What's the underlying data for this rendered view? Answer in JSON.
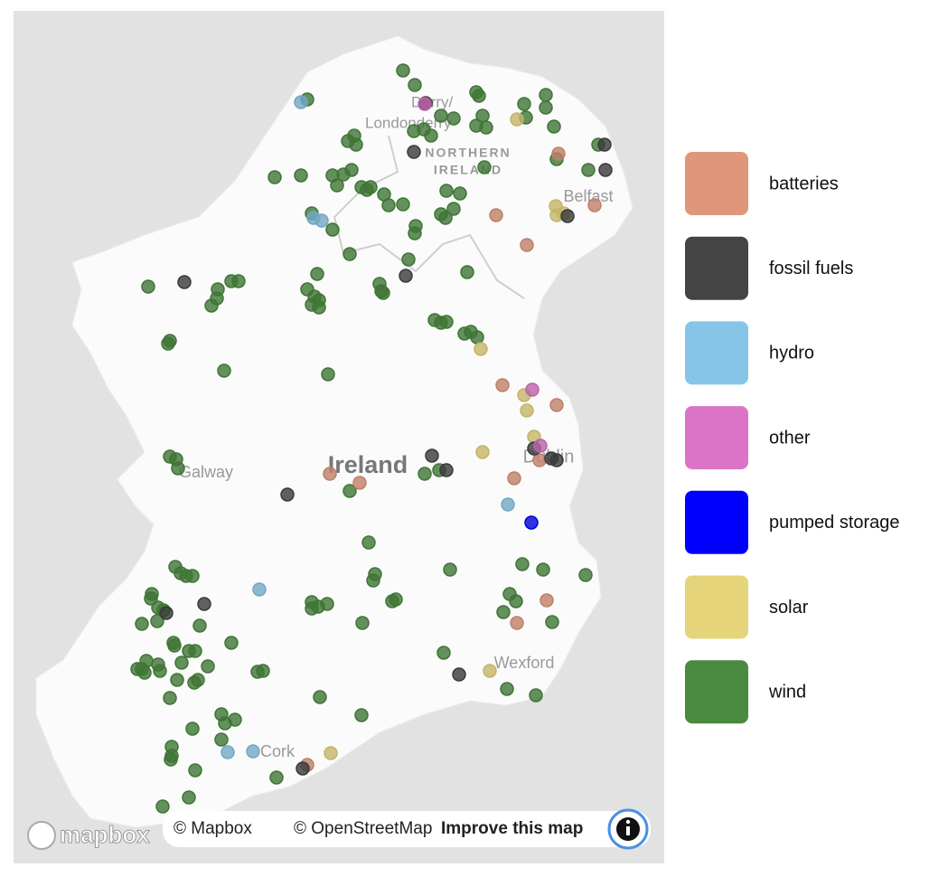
{
  "map": {
    "place_labels": [
      "Derry/",
      "Londonderry",
      "NORTHERN",
      "IRELAND",
      "Belfast",
      "Ireland",
      "Galway",
      "Dublin",
      "Wexford",
      "Cork"
    ],
    "logo": "mapbox",
    "attribution": {
      "mapbox": "© Mapbox",
      "osm": "© OpenStreetMap",
      "improve": "Improve this map"
    }
  },
  "legend": {
    "items": [
      {
        "label": "batteries",
        "color": "#e0967a"
      },
      {
        "label": "fossil fuels",
        "color": "#444444"
      },
      {
        "label": "hydro",
        "color": "#86c5e8"
      },
      {
        "label": "other",
        "color": "#db74c6"
      },
      {
        "label": "pumped storage",
        "color": "#0000ff"
      },
      {
        "label": "solar",
        "color": "#e6d47a"
      },
      {
        "label": "wind",
        "color": "#4a8a3e"
      }
    ]
  }
}
